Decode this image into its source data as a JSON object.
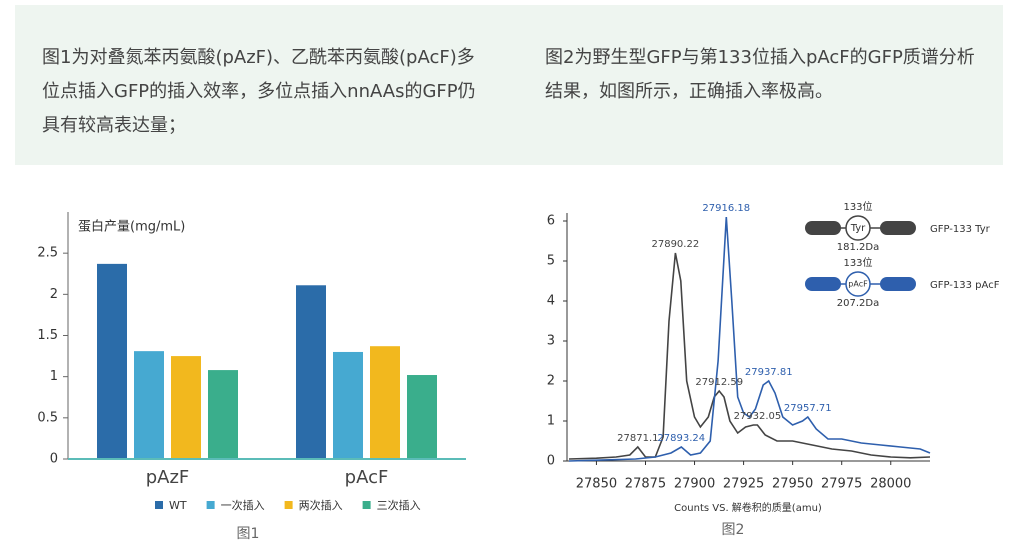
{
  "paragraphs": [
    "图1为对叠氮苯丙氨酸(pAzF)、乙酰苯丙氨酸(pAcF)多位点插入GFP的插入效率，多位点插入nnAAs的GFP仍具有较高表达量；",
    "图2为野生型GFP与第133位插入pAcF的GFP质谱分析结果，如图所示，正确插入率极高。"
  ],
  "chart_data": [
    {
      "type": "bar",
      "caption": "图1",
      "ylabel": "蛋白产量(mg/mL)",
      "categories": [
        "pAzF",
        "pAcF"
      ],
      "series": [
        {
          "name": "WT",
          "color": "#2b6ca9",
          "values": [
            2.37,
            2.11
          ]
        },
        {
          "name": "一次插入",
          "color": "#46a9d1",
          "values": [
            1.31,
            1.3
          ]
        },
        {
          "name": "两次插入",
          "color": "#f2b81e",
          "values": [
            1.25,
            1.37
          ]
        },
        {
          "name": "三次插入",
          "color": "#3aae8c",
          "values": [
            1.08,
            1.02
          ]
        }
      ],
      "ylim": [
        0,
        3
      ],
      "yticks": [
        0,
        0.5,
        1,
        1.5,
        2,
        2.5
      ]
    },
    {
      "type": "line",
      "caption": "图2",
      "xlabel": "Counts VS. 解卷积的质量(amu)",
      "series": [
        {
          "name": "GFP-133 Tyr",
          "color": "#444444",
          "site": "133位",
          "residue": "Tyr",
          "mass": "181.2Da",
          "x": [
            27836,
            27850,
            27860,
            27867,
            27871.1,
            27875,
            27880,
            27884,
            27887,
            27890.22,
            27893,
            27896,
            27900,
            27903,
            27907,
            27910,
            27912.59,
            27915,
            27918,
            27922,
            27926,
            27930,
            27932.05,
            27936,
            27942,
            27950,
            27960,
            27970,
            27980,
            27990,
            28000,
            28010,
            28020
          ],
          "values": [
            0.05,
            0.07,
            0.1,
            0.15,
            0.35,
            0.1,
            0.1,
            0.6,
            3.5,
            5.2,
            4.5,
            2.0,
            1.1,
            0.85,
            1.1,
            1.6,
            1.75,
            1.6,
            1.0,
            0.7,
            0.85,
            0.9,
            0.9,
            0.65,
            0.5,
            0.5,
            0.4,
            0.3,
            0.25,
            0.15,
            0.1,
            0.08,
            0.1
          ]
        },
        {
          "name": "GFP-133 pAcF",
          "color": "#2e5fad",
          "site": "133位",
          "residue": "pAcF",
          "mass": "207.2Da",
          "x": [
            27836,
            27850,
            27870,
            27880,
            27888,
            27893.24,
            27898,
            27903,
            27908,
            27912,
            27916.18,
            27919,
            27922,
            27925,
            27928,
            27931,
            27935,
            27937.81,
            27941,
            27945,
            27950,
            27955,
            27957.71,
            27962,
            27968,
            27975,
            27985,
            27995,
            28005,
            28015,
            28020
          ],
          "values": [
            0.0,
            0.02,
            0.05,
            0.1,
            0.2,
            0.35,
            0.15,
            0.2,
            0.5,
            2.5,
            6.1,
            4.0,
            1.6,
            1.2,
            1.1,
            1.3,
            1.9,
            2.0,
            1.7,
            1.1,
            0.9,
            1.0,
            1.1,
            0.8,
            0.55,
            0.55,
            0.45,
            0.4,
            0.35,
            0.3,
            0.2
          ]
        }
      ],
      "annotations": [
        {
          "series": 0,
          "x": 27871.1,
          "y": 0.35
        },
        {
          "series": 0,
          "x": 27890.22,
          "y": 5.2
        },
        {
          "series": 0,
          "x": 27912.59,
          "y": 1.75
        },
        {
          "series": 0,
          "x": 27932.05,
          "y": 0.9
        },
        {
          "series": 1,
          "x": 27893.24,
          "y": 0.35
        },
        {
          "series": 1,
          "x": 27916.18,
          "y": 6.1
        },
        {
          "series": 1,
          "x": 27937.81,
          "y": 2.0
        },
        {
          "series": 1,
          "x": 27957.71,
          "y": 1.1
        }
      ],
      "xlim": [
        27835,
        28020
      ],
      "xticks": [
        27850,
        27875,
        27900,
        27925,
        27950,
        27975,
        28000
      ],
      "ylim": [
        0,
        6.2
      ],
      "yticks": [
        0,
        1,
        2,
        3,
        4,
        5,
        6
      ]
    }
  ]
}
